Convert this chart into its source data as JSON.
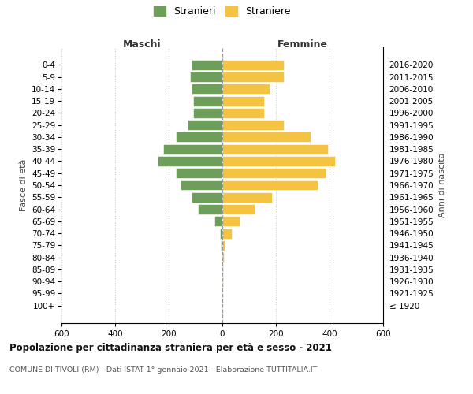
{
  "age_groups": [
    "100+",
    "95-99",
    "90-94",
    "85-89",
    "80-84",
    "75-79",
    "70-74",
    "65-69",
    "60-64",
    "55-59",
    "50-54",
    "45-49",
    "40-44",
    "35-39",
    "30-34",
    "25-29",
    "20-24",
    "15-19",
    "10-14",
    "5-9",
    "0-4"
  ],
  "birth_years": [
    "≤ 1920",
    "1921-1925",
    "1926-1930",
    "1931-1935",
    "1936-1940",
    "1941-1945",
    "1946-1950",
    "1951-1955",
    "1956-1960",
    "1961-1965",
    "1966-1970",
    "1971-1975",
    "1976-1980",
    "1981-1985",
    "1986-1990",
    "1991-1995",
    "1996-2000",
    "2001-2005",
    "2006-2010",
    "2011-2015",
    "2016-2020"
  ],
  "maschi": [
    0,
    0,
    0,
    0,
    2,
    5,
    10,
    30,
    90,
    115,
    155,
    175,
    240,
    220,
    175,
    130,
    110,
    110,
    115,
    120,
    115
  ],
  "femmine": [
    1,
    1,
    2,
    3,
    5,
    8,
    35,
    65,
    120,
    185,
    355,
    385,
    420,
    395,
    330,
    230,
    155,
    155,
    175,
    230,
    230
  ],
  "maschi_color": "#6d9e5a",
  "femmine_color": "#f5c342",
  "maschi_label": "Stranieri",
  "femmine_label": "Straniere",
  "title": "Popolazione per cittadinanza straniera per età e sesso - 2021",
  "subtitle": "COMUNE DI TIVOLI (RM) - Dati ISTAT 1° gennaio 2021 - Elaborazione TUTTITALIA.IT",
  "xlabel_left": "Maschi",
  "xlabel_right": "Femmine",
  "ylabel_left": "Fasce di età",
  "ylabel_right": "Anni di nascita",
  "xlim": 600,
  "background_color": "#ffffff",
  "grid_color": "#cccccc"
}
